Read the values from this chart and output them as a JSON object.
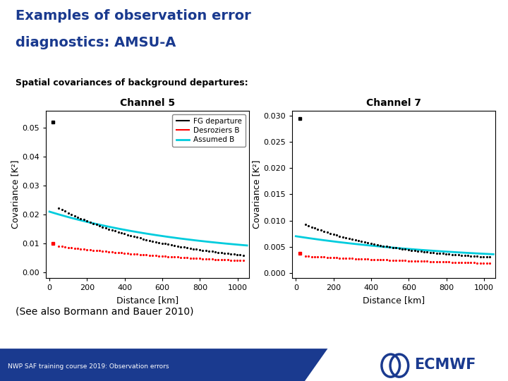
{
  "title_line1": "Examples of observation error",
  "title_line2": "diagnostics: AMSU-A",
  "subtitle": "Spatial covariances of background departures:",
  "title_color": "#1a3a8f",
  "subtitle_color": "#000000",
  "background_color": "#ffffff",
  "ch5_title": "Channel 5",
  "ch7_title": "Channel 7",
  "xlabel": "Distance [km]",
  "ylabel": "Covariance [K²]",
  "ch5_ylim": [
    -0.002,
    0.056
  ],
  "ch7_ylim": [
    -0.001,
    0.031
  ],
  "ch5_yticks": [
    0.0,
    0.01,
    0.02,
    0.03,
    0.04,
    0.05
  ],
  "ch7_yticks": [
    0.0,
    0.005,
    0.01,
    0.015,
    0.02,
    0.025,
    0.03
  ],
  "xlim": [
    -20,
    1060
  ],
  "xticks": [
    0,
    200,
    400,
    600,
    800,
    1000
  ],
  "legend_labels": [
    "FG departure",
    "Desroziers B",
    "Assumed B"
  ],
  "legend_colors": [
    "#000000",
    "#ff0000",
    "#00e5ff"
  ],
  "footer_text": "NWP SAF training course 2019: Observation errors",
  "footer_bg": "#1a3a8f",
  "footer_text_color": "#ffffff",
  "see_also_text": "(See also Bormann and Bauer 2010)",
  "ecmwf_color": "#1a3a8f"
}
